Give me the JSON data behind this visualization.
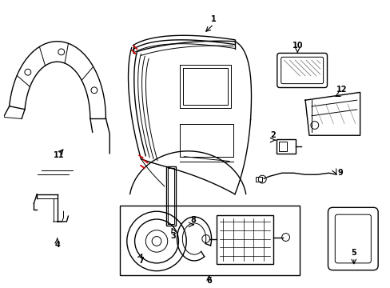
{
  "background_color": "#ffffff",
  "line_color": "#000000",
  "red_color": "#cc0000",
  "figsize": [
    4.89,
    3.6
  ],
  "dpi": 100
}
